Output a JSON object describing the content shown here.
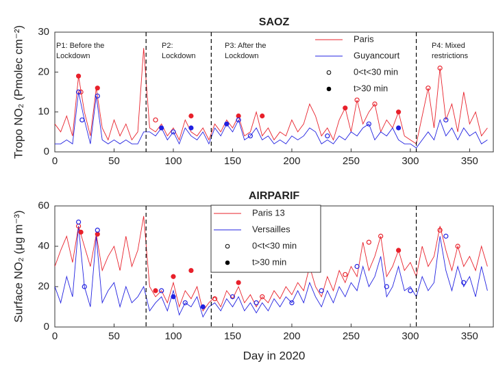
{
  "chart_data": [
    {
      "type": "line",
      "title": "SAOZ",
      "y_label": "Tropo NO₂ (Pmolec cm⁻²)",
      "x": [
        0,
        5,
        10,
        15,
        20,
        25,
        30,
        35,
        40,
        45,
        50,
        55,
        60,
        65,
        70,
        75,
        80,
        85,
        90,
        95,
        100,
        105,
        110,
        115,
        120,
        125,
        130,
        135,
        140,
        145,
        150,
        155,
        160,
        165,
        170,
        175,
        180,
        185,
        190,
        195,
        200,
        205,
        210,
        215,
        220,
        225,
        230,
        235,
        240,
        245,
        250,
        255,
        260,
        265,
        270,
        275,
        280,
        285,
        290,
        295,
        300,
        305,
        310,
        315,
        320,
        325,
        330,
        335,
        340,
        345,
        350,
        355,
        360,
        365
      ],
      "series": [
        {
          "name": "Paris",
          "color": "#e8202a",
          "values": [
            7,
            5,
            9,
            4,
            19,
            10,
            4,
            16,
            6,
            3,
            8,
            4,
            7,
            3,
            5,
            26,
            6,
            5,
            7,
            4,
            6,
            3,
            8,
            5,
            4,
            6,
            3,
            7,
            5,
            8,
            6,
            9,
            4,
            5,
            10,
            4,
            6,
            3,
            5,
            4,
            8,
            5,
            7,
            12,
            9,
            4,
            6,
            3,
            8,
            11,
            5,
            13,
            7,
            10,
            12,
            5,
            8,
            6,
            10,
            4,
            3,
            2,
            9,
            16,
            6,
            21,
            8,
            12,
            5,
            15,
            7,
            10,
            4,
            6
          ],
          "markers": {
            "x": [
              20,
              22,
              36,
              85,
              115,
              155,
              175,
              245,
              255,
              270,
              290,
              315,
              325
            ],
            "values": [
              19,
              15,
              16,
              8,
              9,
              9,
              9,
              11,
              13,
              12,
              10,
              16,
              21
            ],
            "filled": [
              true,
              false,
              true,
              false,
              true,
              true,
              true,
              true,
              false,
              false,
              true,
              false,
              false
            ]
          }
        },
        {
          "name": "Guyancourt",
          "color": "#2020e0",
          "values": [
            2,
            2,
            3,
            2,
            15,
            8,
            2,
            14,
            3,
            2,
            3,
            2,
            3,
            2,
            2,
            5,
            5,
            4,
            6,
            3,
            5,
            2,
            6,
            4,
            3,
            5,
            2,
            6,
            4,
            7,
            5,
            8,
            3,
            4,
            6,
            3,
            4,
            2,
            3,
            2,
            4,
            3,
            4,
            6,
            5,
            2,
            3,
            2,
            4,
            3,
            5,
            4,
            6,
            7,
            3,
            5,
            4,
            6,
            3,
            2,
            2,
            1,
            3,
            5,
            3,
            8,
            4,
            6,
            3,
            6,
            4,
            5,
            2,
            3
          ],
          "markers": {
            "x": [
              20,
              23,
              36,
              90,
              100,
              115,
              145,
              155,
              165,
              230,
              265,
              290,
              330
            ],
            "values": [
              15,
              8,
              14,
              6,
              5,
              6,
              7,
              8,
              4,
              4,
              7,
              6,
              8
            ],
            "filled": [
              false,
              false,
              false,
              true,
              false,
              true,
              true,
              false,
              false,
              false,
              false,
              true,
              false
            ]
          }
        }
      ],
      "marker_legend": [
        "0<t<30 min",
        "t>30 min"
      ],
      "vlines": [
        77,
        132,
        305
      ],
      "annotations": [
        [
          "P1: Before the",
          "Lockdown"
        ],
        [
          "P2:",
          "Lockdown"
        ],
        [
          "P3: After the",
          "Lockdown"
        ],
        [
          "P4: Mixed",
          "restrictions"
        ]
      ],
      "xlim": [
        0,
        370
      ],
      "xticks": [
        0,
        50,
        100,
        150,
        200,
        250,
        300,
        350
      ],
      "ylim": [
        0,
        30
      ],
      "yticks": [
        0,
        10,
        20,
        30
      ]
    },
    {
      "type": "line",
      "title": "AIRPARIF",
      "y_label": "Surface NO₂ (μg m⁻³)",
      "x_label": "Day in 2020",
      "x": [
        0,
        5,
        10,
        15,
        20,
        25,
        30,
        35,
        40,
        45,
        50,
        55,
        60,
        65,
        70,
        75,
        80,
        85,
        90,
        95,
        100,
        105,
        110,
        115,
        120,
        125,
        130,
        135,
        140,
        145,
        150,
        155,
        160,
        165,
        170,
        175,
        180,
        185,
        190,
        195,
        200,
        205,
        210,
        215,
        220,
        225,
        230,
        235,
        240,
        245,
        250,
        255,
        260,
        265,
        270,
        275,
        280,
        285,
        290,
        295,
        300,
        305,
        310,
        315,
        320,
        325,
        330,
        335,
        340,
        345,
        350,
        355,
        360,
        365
      ],
      "series": [
        {
          "name": "Paris 13",
          "color": "#e8202a",
          "values": [
            30,
            38,
            45,
            32,
            50,
            40,
            30,
            46,
            28,
            35,
            40,
            28,
            45,
            30,
            38,
            55,
            20,
            15,
            18,
            12,
            22,
            10,
            18,
            14,
            20,
            8,
            12,
            15,
            10,
            18,
            14,
            20,
            12,
            16,
            10,
            15,
            12,
            18,
            14,
            20,
            16,
            22,
            18,
            30,
            20,
            15,
            25,
            18,
            28,
            22,
            30,
            25,
            42,
            28,
            35,
            45,
            25,
            30,
            38,
            28,
            32,
            25,
            40,
            30,
            35,
            50,
            38,
            28,
            40,
            30,
            35,
            28,
            40,
            30
          ],
          "markers": {
            "x": [
              20,
              22,
              36,
              85,
              100,
              115,
              135,
              155,
              175,
              215,
              245,
              265,
              275,
              290,
              325,
              340
            ],
            "values": [
              50,
              47,
              46,
              18,
              25,
              28,
              14,
              22,
              15,
              30,
              26,
              42,
              45,
              38,
              48,
              40
            ],
            "filled": [
              false,
              true,
              true,
              true,
              true,
              true,
              false,
              true,
              false,
              false,
              false,
              false,
              false,
              true,
              false,
              false
            ]
          }
        },
        {
          "name": "Versailles",
          "color": "#2020e0",
          "values": [
            20,
            12,
            25,
            15,
            50,
            20,
            10,
            45,
            12,
            18,
            22,
            10,
            20,
            12,
            15,
            20,
            8,
            12,
            15,
            8,
            18,
            6,
            12,
            10,
            15,
            5,
            10,
            12,
            8,
            14,
            10,
            15,
            8,
            12,
            7,
            12,
            8,
            14,
            10,
            15,
            12,
            18,
            12,
            22,
            15,
            10,
            18,
            12,
            20,
            15,
            22,
            18,
            30,
            20,
            25,
            35,
            15,
            20,
            30,
            18,
            20,
            15,
            25,
            18,
            22,
            45,
            28,
            18,
            30,
            20,
            25,
            15,
            30,
            18
          ],
          "markers": {
            "x": [
              20,
              25,
              36,
              90,
              100,
              110,
              125,
              150,
              170,
              200,
              225,
              255,
              280,
              300,
              330,
              345
            ],
            "values": [
              52,
              20,
              48,
              18,
              15,
              12,
              10,
              15,
              12,
              12,
              18,
              30,
              20,
              18,
              45,
              22
            ],
            "filled": [
              false,
              false,
              false,
              false,
              true,
              false,
              true,
              false,
              false,
              false,
              false,
              false,
              false,
              false,
              false,
              false
            ]
          }
        }
      ],
      "marker_legend": [
        "0<t<30 min",
        "t>30 min"
      ],
      "vlines": [
        77,
        132,
        305
      ],
      "xlim": [
        0,
        370
      ],
      "xticks": [
        0,
        50,
        100,
        150,
        200,
        250,
        300,
        350
      ],
      "ylim": [
        0,
        60
      ],
      "yticks": [
        0,
        20,
        40,
        60
      ]
    }
  ]
}
